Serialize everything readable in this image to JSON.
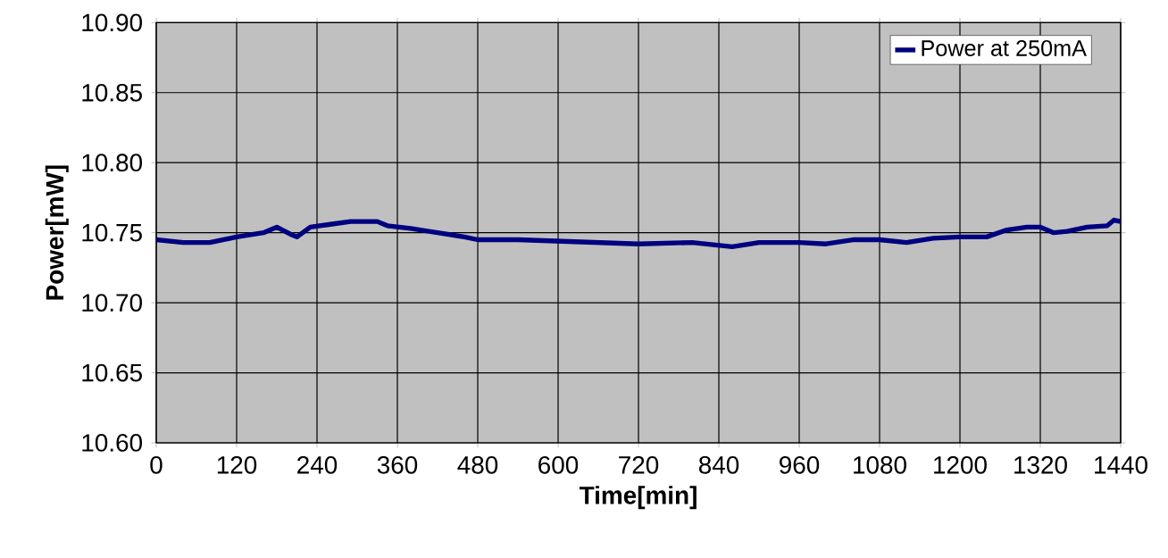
{
  "chart_data": {
    "type": "line",
    "xlabel": "Time[min]",
    "ylabel": "Power[mW]",
    "x": [
      0,
      40,
      80,
      120,
      160,
      180,
      200,
      210,
      230,
      260,
      290,
      330,
      345,
      380,
      420,
      460,
      480,
      540,
      600,
      660,
      720,
      800,
      860,
      900,
      960,
      1000,
      1040,
      1080,
      1120,
      1160,
      1200,
      1240,
      1270,
      1300,
      1320,
      1340,
      1360,
      1390,
      1420,
      1430,
      1440
    ],
    "series": [
      {
        "name": "Power at 250mA",
        "color": "#000080",
        "values": [
          10.745,
          10.743,
          10.743,
          10.747,
          10.75,
          10.754,
          10.749,
          10.747,
          10.754,
          10.756,
          10.758,
          10.758,
          10.755,
          10.753,
          10.75,
          10.747,
          10.745,
          10.745,
          10.744,
          10.743,
          10.742,
          10.743,
          10.74,
          10.743,
          10.743,
          10.742,
          10.745,
          10.745,
          10.743,
          10.746,
          10.747,
          10.747,
          10.752,
          10.754,
          10.754,
          10.75,
          10.751,
          10.754,
          10.755,
          10.759,
          10.758
        ]
      }
    ],
    "xlim": [
      0,
      1440
    ],
    "xticks": [
      0,
      120,
      240,
      360,
      480,
      600,
      720,
      840,
      960,
      1080,
      1200,
      1320,
      1440
    ],
    "ylim": [
      10.6,
      10.9
    ],
    "yticks": [
      {
        "value": 10.6,
        "label": "10.60"
      },
      10.65,
      {
        "value": 10.7,
        "label": "10.70"
      },
      10.75,
      {
        "value": 10.8,
        "label": "10.80"
      },
      10.85,
      {
        "value": 10.9,
        "label": "10.90"
      }
    ],
    "grid": true,
    "legend": "top right",
    "marker": "none",
    "line_style": "solid"
  }
}
